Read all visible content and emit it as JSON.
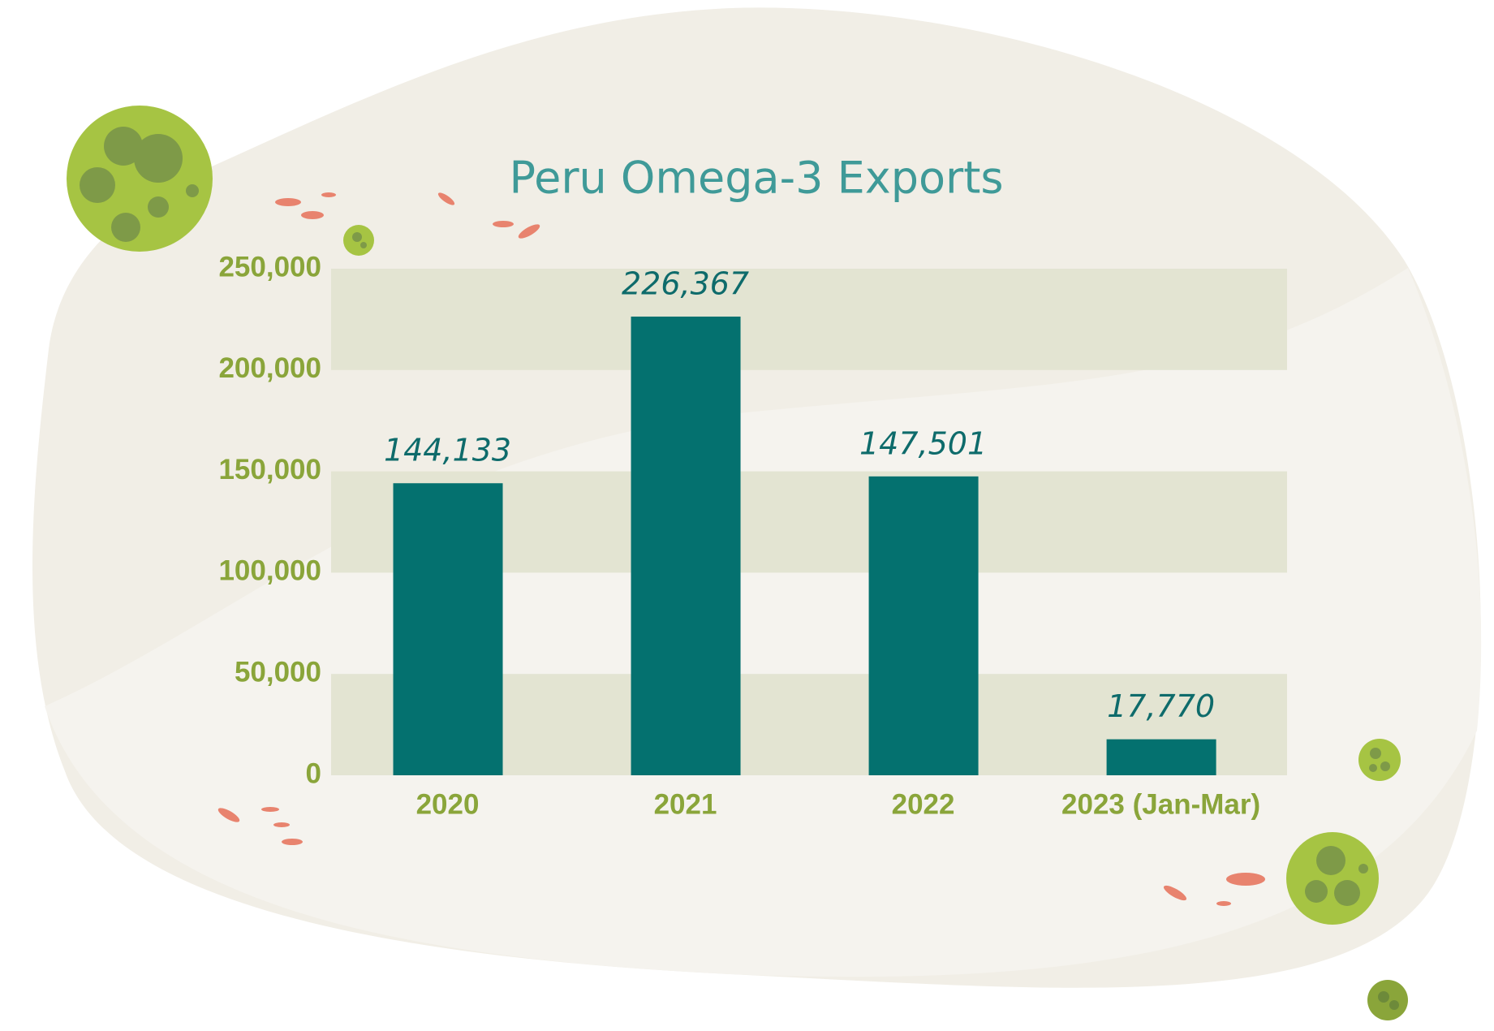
{
  "chart_data": {
    "type": "bar",
    "title": "Peru Omega-3 Exports",
    "categories": [
      "2020",
      "2021",
      "2022",
      "2023 (Jan-Mar)"
    ],
    "values": [
      144133,
      226367,
      147501,
      17770
    ],
    "value_labels": [
      "144,133",
      "226,367",
      "147,501",
      "17,770"
    ],
    "color": "#04716f",
    "ylim": [
      0,
      250000
    ],
    "yticks": [
      0,
      {
        "value": 50000,
        "label": "50,000"
      },
      {
        "value": 100000,
        "label": "100,000"
      },
      {
        "value": 150000,
        "label": "150,000"
      },
      {
        "value": 200000,
        "label": "200,000"
      },
      {
        "value": 250000,
        "label": "250,000"
      }
    ],
    "grid": true
  }
}
